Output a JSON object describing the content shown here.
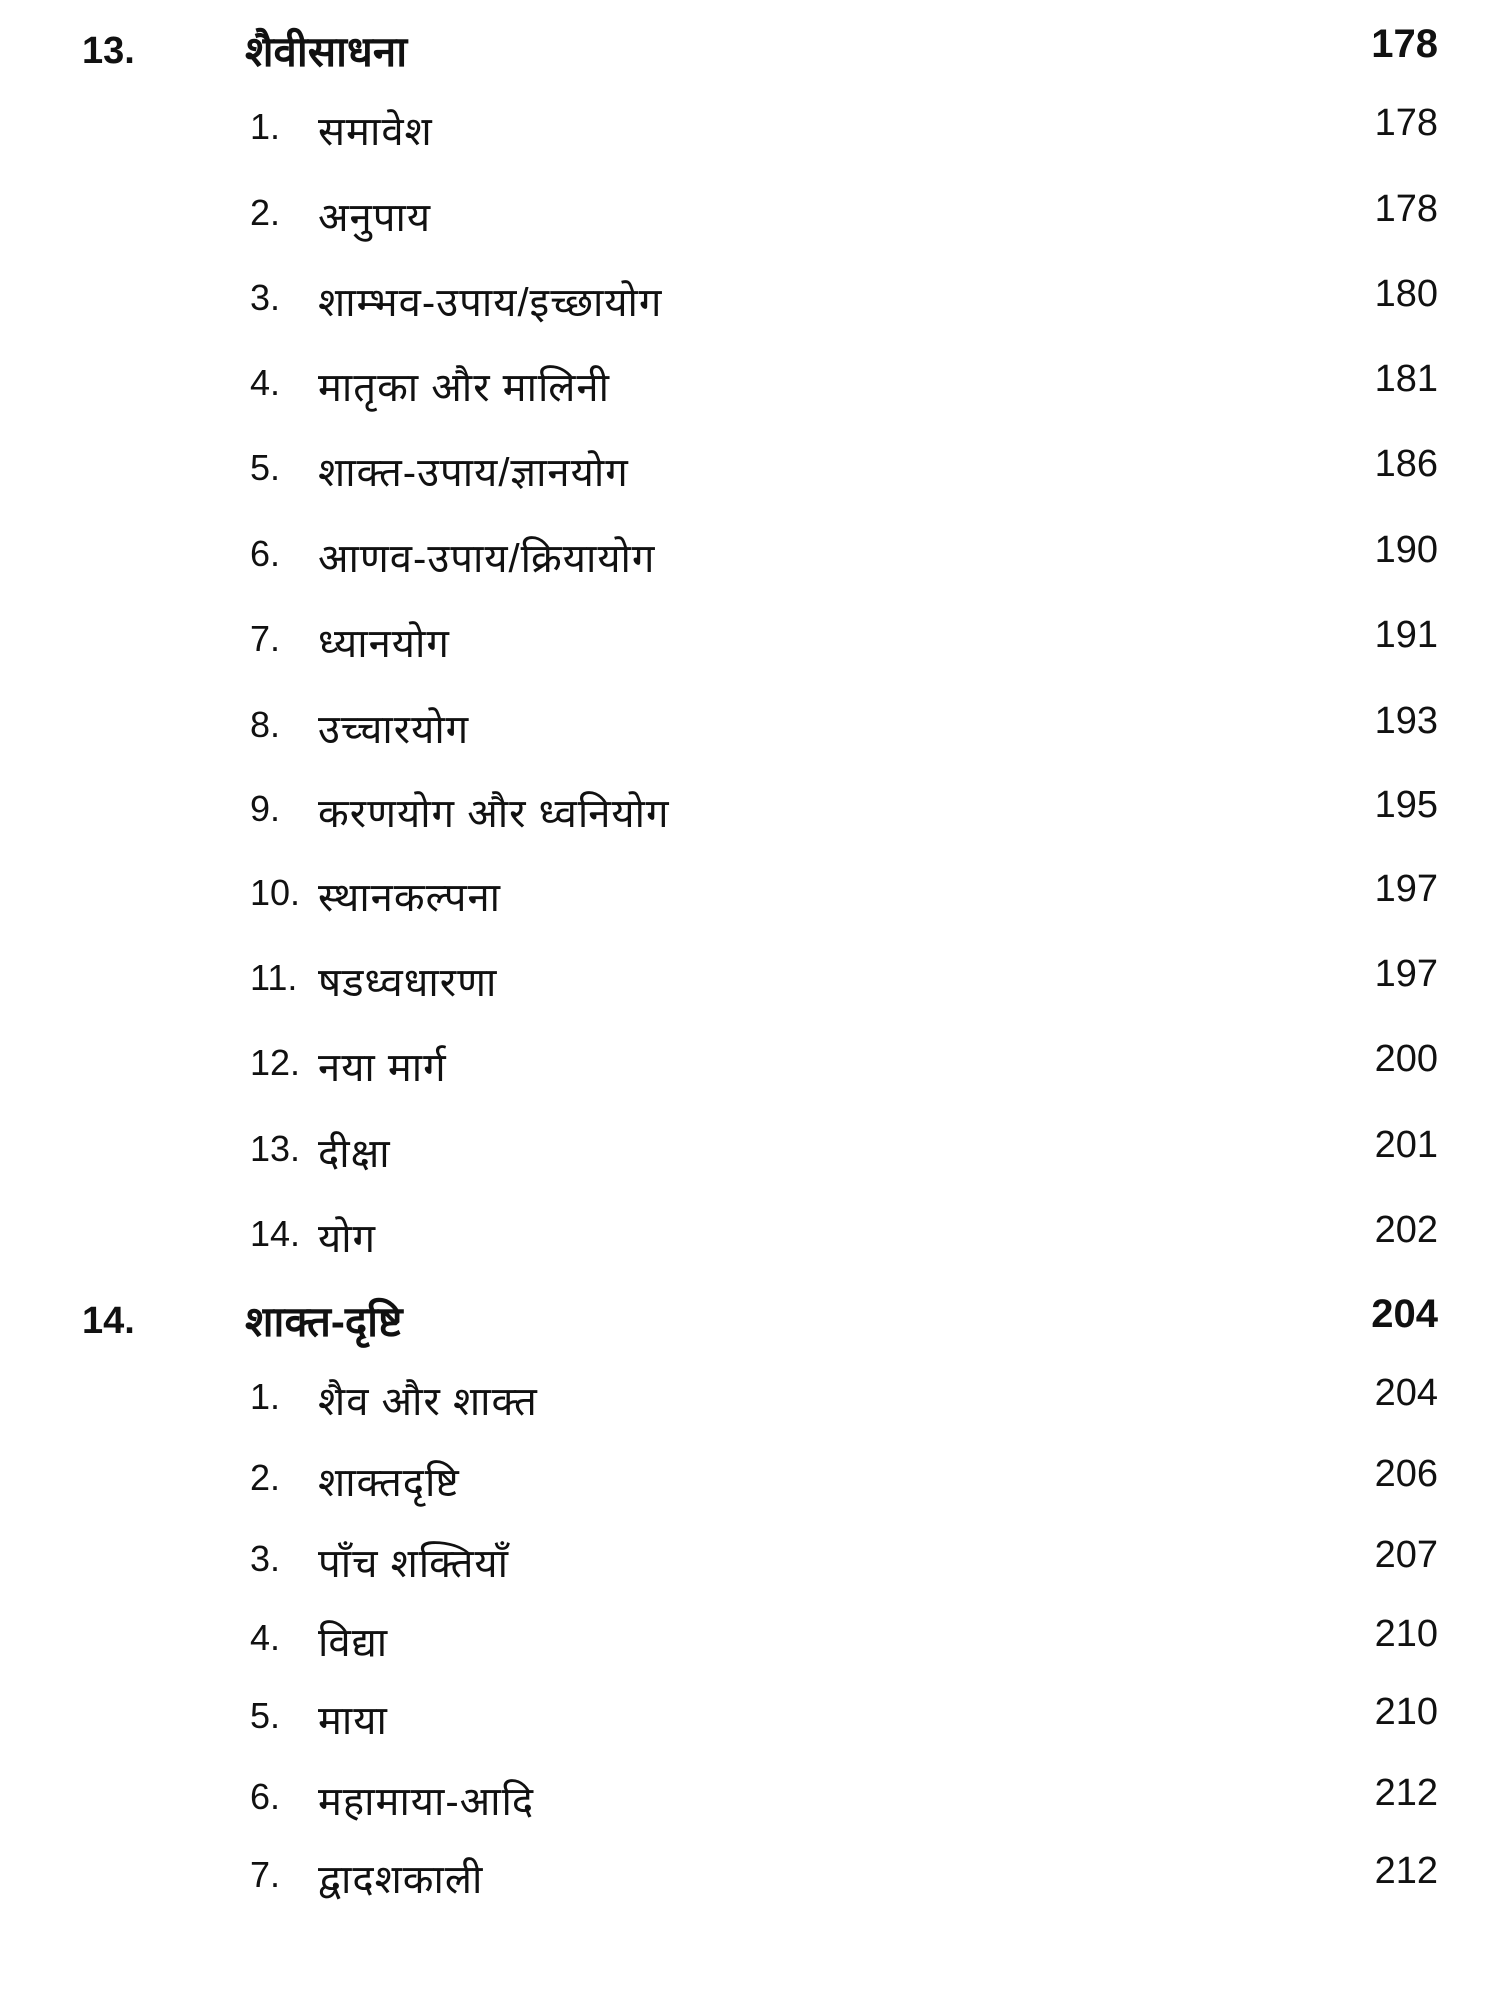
{
  "chapters": [
    {
      "number": "13.",
      "title": "शैवीसाधना",
      "page": "178",
      "items": [
        {
          "number": "1.",
          "title": "समावेश",
          "page": "178"
        },
        {
          "number": "2.",
          "title": "अनुपाय",
          "page": "178"
        },
        {
          "number": "3.",
          "title": "शाम्भव-उपाय/इच्छायोग",
          "page": "180"
        },
        {
          "number": "4.",
          "title": "मातृका और मालिनी",
          "page": "181"
        },
        {
          "number": "5.",
          "title": "शाक्त-उपाय/ज्ञानयोग",
          "page": "186"
        },
        {
          "number": "6.",
          "title": "आणव-उपाय/क्रियायोग",
          "page": "190"
        },
        {
          "number": "7.",
          "title": "ध्यानयोग",
          "page": "191"
        },
        {
          "number": "8.",
          "title": "उच्चारयोग",
          "page": "193"
        },
        {
          "number": "9.",
          "title": "करणयोग और ध्वनियोग",
          "page": "195"
        },
        {
          "number": "10.",
          "title": "स्थानकल्पना",
          "page": "197"
        },
        {
          "number": "11.",
          "title": "षडध्वधारणा",
          "page": "197"
        },
        {
          "number": "12.",
          "title": "नया मार्ग",
          "page": "200"
        },
        {
          "number": "13.",
          "title": "दीक्षा",
          "page": "201"
        },
        {
          "number": "14.",
          "title": "योग",
          "page": "202"
        }
      ]
    },
    {
      "number": "14.",
      "title": "शाक्त-दृष्टि",
      "page": "204",
      "items": [
        {
          "number": "1.",
          "title": "शैव और शाक्त",
          "page": "204"
        },
        {
          "number": "2.",
          "title": "शाक्तदृष्टि",
          "page": "206"
        },
        {
          "number": "3.",
          "title": "पाँच शक्तियाँ",
          "page": "207"
        },
        {
          "number": "4.",
          "title": "विद्या",
          "page": "210"
        },
        {
          "number": "5.",
          "title": "माया",
          "page": "210"
        },
        {
          "number": "6.",
          "title": "महामाया-आदि",
          "page": "212"
        },
        {
          "number": "7.",
          "title": "द्वादशकाली",
          "page": "212"
        }
      ]
    }
  ]
}
